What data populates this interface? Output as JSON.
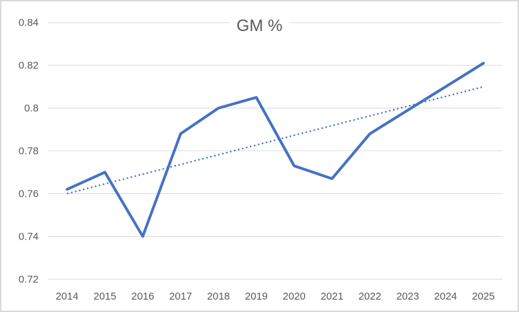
{
  "chart_data": {
    "type": "line",
    "title": "GM %",
    "categories": [
      "2014",
      "2015",
      "2016",
      "2017",
      "2018",
      "2019",
      "2020",
      "2021",
      "2022",
      "2023",
      "2024",
      "2025"
    ],
    "series": [
      {
        "name": "GM %",
        "values": [
          0.762,
          0.77,
          0.74,
          0.788,
          0.8,
          0.805,
          0.773,
          0.767,
          0.788,
          0.799,
          0.81,
          0.821
        ],
        "color": "#4472C4",
        "style": "solid"
      }
    ],
    "trendline": {
      "type": "linear",
      "start": 0.76,
      "end": 0.81,
      "color": "#4472C4",
      "style": "dotted"
    },
    "xlabel": "",
    "ylabel": "",
    "ylim": [
      0.72,
      0.84
    ],
    "ytick_step": 0.02,
    "ytick_labels": [
      "0.84",
      "0.82",
      "0.8",
      "0.78",
      "0.76",
      "0.74",
      "0.72"
    ],
    "grid": true,
    "legend": "none",
    "colors": {
      "gridline": "#D9D9D9",
      "axis_text": "#595959",
      "title_text": "#595959",
      "series_line": "#4472C4",
      "trendline": "#4472C4",
      "background": "#FFFFFF",
      "border": "#D9D9D9"
    }
  }
}
